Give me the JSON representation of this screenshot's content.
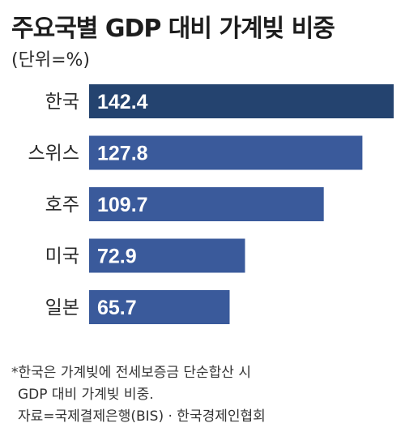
{
  "chart_data": {
    "type": "bar",
    "orientation": "horizontal",
    "title": "주요국별 GDP 대비 가계빚 비중",
    "subtitle": "(단위=%)",
    "categories": [
      "한국",
      "스위스",
      "호주",
      "미국",
      "일본"
    ],
    "values": [
      142.4,
      127.8,
      109.7,
      72.9,
      65.7
    ],
    "value_labels": [
      "142.4",
      "127.8",
      "109.7",
      "72.9",
      "65.7"
    ],
    "highlight_color": "#24436f",
    "bar_color": "#3a5a9b",
    "label_color": "#ffffff",
    "axis": {
      "shown": false,
      "grid": false
    }
  },
  "footnote": {
    "line1": "*한국은 가계빚에 전세보증금 단순합산 시",
    "line2": "GDP 대비 가계빚 비중.",
    "line3": "자료=국제결제은행(BIS) · 한국경제인협회"
  }
}
